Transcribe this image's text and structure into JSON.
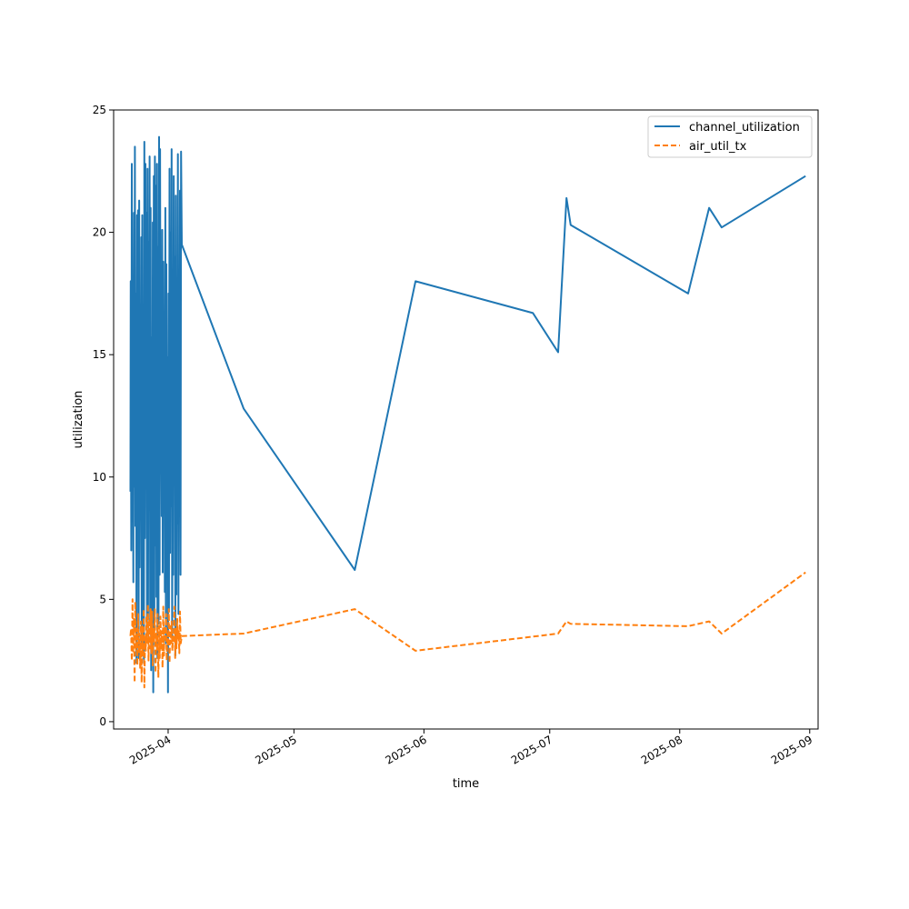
{
  "chart_data": {
    "type": "line",
    "title": "",
    "xlabel": "time",
    "ylabel": "utilization",
    "xlim": [
      "2025-03-19",
      "2025-09-03"
    ],
    "ylim": [
      -0.3,
      25
    ],
    "x_ticks": [
      "2025-04",
      "2025-05",
      "2025-06",
      "2025-07",
      "2025-08",
      "2025-09"
    ],
    "y_ticks": [
      0,
      5,
      10,
      15,
      20,
      25
    ],
    "grid": false,
    "legend": "top-right",
    "colors": {
      "channel_utilization": "#1f77b4",
      "air_util_tx": "#ff7f0e"
    },
    "series": [
      {
        "name": "channel_utilization",
        "style": "solid",
        "x": [
          "2025-03-23T00:00",
          "2025-03-23T02:00",
          "2025-03-23T05:00",
          "2025-03-23T08:00",
          "2025-03-23T11:00",
          "2025-03-23T14:00",
          "2025-03-23T17:00",
          "2025-03-23T20:00",
          "2025-03-23T23:00",
          "2025-03-24T02:00",
          "2025-03-24T05:00",
          "2025-03-24T08:00",
          "2025-03-24T11:00",
          "2025-03-24T14:00",
          "2025-03-24T17:00",
          "2025-03-24T20:00",
          "2025-03-24T23:00",
          "2025-03-25T02:00",
          "2025-03-25T05:00",
          "2025-03-25T08:00",
          "2025-03-25T11:00",
          "2025-03-25T14:00",
          "2025-03-25T17:00",
          "2025-03-25T20:00",
          "2025-03-25T23:00",
          "2025-03-26T02:00",
          "2025-03-26T05:00",
          "2025-03-26T08:00",
          "2025-03-26T11:00",
          "2025-03-26T14:00",
          "2025-03-26T17:00",
          "2025-03-26T20:00",
          "2025-03-26T23:00",
          "2025-03-27T02:00",
          "2025-03-27T05:00",
          "2025-03-27T08:00",
          "2025-03-27T11:00",
          "2025-03-27T14:00",
          "2025-03-27T17:00",
          "2025-03-27T20:00",
          "2025-03-27T23:00",
          "2025-03-28T02:00",
          "2025-03-28T05:00",
          "2025-03-28T08:00",
          "2025-03-28T11:00",
          "2025-03-28T14:00",
          "2025-03-28T17:00",
          "2025-03-28T20:00",
          "2025-03-28T23:00",
          "2025-03-29T02:00",
          "2025-03-29T05:00",
          "2025-03-29T08:00",
          "2025-03-29T11:00",
          "2025-03-29T14:00",
          "2025-03-29T17:00",
          "2025-03-29T20:00",
          "2025-03-29T23:00",
          "2025-03-30T02:00",
          "2025-03-30T05:00",
          "2025-03-30T08:00",
          "2025-03-30T11:00",
          "2025-03-30T14:00",
          "2025-03-30T17:00",
          "2025-03-30T20:00",
          "2025-03-30T23:00",
          "2025-03-31T02:00",
          "2025-03-31T05:00",
          "2025-03-31T08:00",
          "2025-03-31T11:00",
          "2025-03-31T14:00",
          "2025-03-31T17:00",
          "2025-03-31T20:00",
          "2025-03-31T23:00",
          "2025-04-01T02:00",
          "2025-04-01T05:00",
          "2025-04-01T08:00",
          "2025-04-01T11:00",
          "2025-04-01T14:00",
          "2025-04-01T17:00",
          "2025-04-01T20:00",
          "2025-04-01T23:00",
          "2025-04-02T02:00",
          "2025-04-02T05:00",
          "2025-04-02T08:00",
          "2025-04-02T11:00",
          "2025-04-02T14:00",
          "2025-04-02T17:00",
          "2025-04-02T20:00",
          "2025-04-02T23:00",
          "2025-04-03T02:00",
          "2025-04-03T05:00",
          "2025-04-03T08:00",
          "2025-04-03T11:00",
          "2025-04-03T14:00",
          "2025-04-03T17:00",
          "2025-04-03T20:00",
          "2025-04-03T23:00",
          "2025-04-04T02:00",
          "2025-04-04T06:00",
          "2025-04-19T00:00",
          "2025-05-15T12:00",
          "2025-05-30T00:00",
          "2025-06-27T00:00",
          "2025-07-03T00:00",
          "2025-07-05T00:00",
          "2025-07-06T00:00",
          "2025-08-03T00:00",
          "2025-08-08T00:00",
          "2025-08-11T00:00",
          "2025-08-31T00:00"
        ],
        "y": [
          9.4,
          18.0,
          7.0,
          22.8,
          8.2,
          12.0,
          5.7,
          20.8,
          9.6,
          23.5,
          8.0,
          17.5,
          2.4,
          20.7,
          7.4,
          20.9,
          2.6,
          21.3,
          6.3,
          15.0,
          9.0,
          19.8,
          3.0,
          20.7,
          4.0,
          16.0,
          2.4,
          23.7,
          7.5,
          22.8,
          9.7,
          20.8,
          3.4,
          22.6,
          4.2,
          19.6,
          10.1,
          23.1,
          4.0,
          21.0,
          2.1,
          15.7,
          4.0,
          20.4,
          1.2,
          22.3,
          3.8,
          23.1,
          7.2,
          21.9,
          5.1,
          22.8,
          2.6,
          19.4,
          4.0,
          23.9,
          6.0,
          23.4,
          11.0,
          14.5,
          8.4,
          20.1,
          6.1,
          18.8,
          9.5,
          16.4,
          5.3,
          21.0,
          3.2,
          18.7,
          7.8,
          14.9,
          1.2,
          17.5,
          4.5,
          22.6,
          6.9,
          20.0,
          8.8,
          23.4,
          3.5,
          15.4,
          6.0,
          22.3,
          9.8,
          19.0,
          2.7,
          21.5,
          5.2,
          17.7,
          8.1,
          23.2,
          4.4,
          16.9,
          10.4,
          21.7,
          6.0,
          23.3,
          19.5,
          12.8,
          6.2,
          18.0,
          16.7,
          15.1,
          21.4,
          20.3,
          17.5,
          21.0,
          20.2,
          22.3
        ]
      },
      {
        "name": "air_util_tx",
        "style": "dashed",
        "x": [
          "2025-03-23T00:00",
          "2025-03-23T04:00",
          "2025-03-23T08:00",
          "2025-03-23T12:00",
          "2025-03-23T16:00",
          "2025-03-23T20:00",
          "2025-03-24T00:00",
          "2025-03-24T04:00",
          "2025-03-24T08:00",
          "2025-03-24T12:00",
          "2025-03-24T16:00",
          "2025-03-24T20:00",
          "2025-03-25T00:00",
          "2025-03-25T04:00",
          "2025-03-25T08:00",
          "2025-03-25T12:00",
          "2025-03-25T16:00",
          "2025-03-25T20:00",
          "2025-03-26T00:00",
          "2025-03-26T04:00",
          "2025-03-26T08:00",
          "2025-03-26T12:00",
          "2025-03-26T16:00",
          "2025-03-26T20:00",
          "2025-03-27T00:00",
          "2025-03-27T04:00",
          "2025-03-27T08:00",
          "2025-03-27T12:00",
          "2025-03-27T16:00",
          "2025-03-27T20:00",
          "2025-03-28T00:00",
          "2025-03-28T04:00",
          "2025-03-28T08:00",
          "2025-03-28T12:00",
          "2025-03-28T16:00",
          "2025-03-28T20:00",
          "2025-03-29T00:00",
          "2025-03-29T04:00",
          "2025-03-29T08:00",
          "2025-03-29T12:00",
          "2025-03-29T16:00",
          "2025-03-29T20:00",
          "2025-03-30T00:00",
          "2025-03-30T04:00",
          "2025-03-30T08:00",
          "2025-03-30T12:00",
          "2025-03-30T16:00",
          "2025-03-30T20:00",
          "2025-03-31T00:00",
          "2025-03-31T04:00",
          "2025-03-31T08:00",
          "2025-03-31T12:00",
          "2025-03-31T16:00",
          "2025-03-31T20:00",
          "2025-04-01T00:00",
          "2025-04-01T04:00",
          "2025-04-01T08:00",
          "2025-04-01T12:00",
          "2025-04-01T16:00",
          "2025-04-01T20:00",
          "2025-04-02T00:00",
          "2025-04-02T04:00",
          "2025-04-02T08:00",
          "2025-04-02T12:00",
          "2025-04-02T16:00",
          "2025-04-02T20:00",
          "2025-04-03T00:00",
          "2025-04-03T04:00",
          "2025-04-03T08:00",
          "2025-04-03T12:00",
          "2025-04-03T16:00",
          "2025-04-03T20:00",
          "2025-04-04T00:00",
          "2025-04-04T06:00",
          "2025-04-19T00:00",
          "2025-05-15T12:00",
          "2025-05-30T00:00",
          "2025-07-03T00:00",
          "2025-07-05T00:00",
          "2025-07-06T00:00",
          "2025-08-03T00:00",
          "2025-08-08T00:00",
          "2025-08-11T00:00",
          "2025-08-31T00:00"
        ],
        "y": [
          3.5,
          3.8,
          2.5,
          5.0,
          2.8,
          4.2,
          1.6,
          4.9,
          2.9,
          3.8,
          2.3,
          4.4,
          2.8,
          3.6,
          2.2,
          4.1,
          1.6,
          3.9,
          2.7,
          4.6,
          1.4,
          3.5,
          2.9,
          4.3,
          3.2,
          4.8,
          2.5,
          4.2,
          3.0,
          4.6,
          2.8,
          4.5,
          2.3,
          3.8,
          3.3,
          4.6,
          2.0,
          3.6,
          2.9,
          4.4,
          1.8,
          3.9,
          2.6,
          4.3,
          3.0,
          3.7,
          2.2,
          4.7,
          2.7,
          3.9,
          3.4,
          4.4,
          2.5,
          3.6,
          3.1,
          4.6,
          2.4,
          3.9,
          3.2,
          4.1,
          2.9,
          3.5,
          3.3,
          4.7,
          2.6,
          3.8,
          3.0,
          4.2,
          3.4,
          3.7,
          2.8,
          4.5,
          3.2,
          3.5,
          3.6,
          4.6,
          2.9,
          3.6,
          4.1,
          4.0,
          3.9,
          4.1,
          3.6,
          6.1
        ]
      }
    ]
  }
}
